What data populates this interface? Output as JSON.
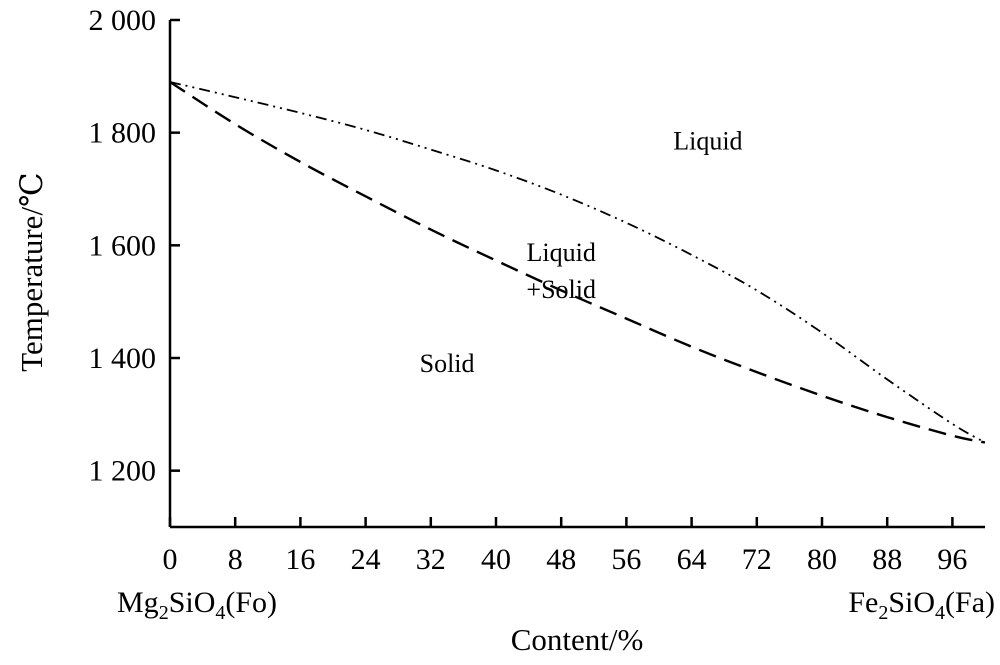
{
  "chart_data": {
    "type": "line",
    "xlabel": "Content/%",
    "ylabel": "Temperature/℃",
    "x_ticks": [
      0,
      8,
      16,
      24,
      32,
      40,
      48,
      56,
      64,
      72,
      80,
      88,
      96
    ],
    "y_ticks": [
      1200,
      1400,
      1600,
      1800,
      2000
    ],
    "y_tick_labels": [
      "1 200",
      "1 400",
      "1 600",
      "1 800",
      "2 000"
    ],
    "xlim": [
      0,
      100
    ],
    "ylim": [
      1100,
      2000
    ],
    "grid": false,
    "end_labels": {
      "left": {
        "main": "Mg",
        "s1": "2",
        "mid": "SiO",
        "s2": "4",
        "tail": "(Fo)"
      },
      "right": {
        "main": "Fe",
        "s1": "2",
        "mid": "SiO",
        "s2": "4",
        "tail": "(Fa)"
      }
    },
    "series": [
      {
        "id": "liquidus",
        "style": "dash-dot-dot",
        "x": [
          0,
          8,
          16,
          24,
          32,
          40,
          48,
          56,
          64,
          72,
          80,
          88,
          96,
          100
        ],
        "y": [
          1890,
          1863,
          1835,
          1805,
          1770,
          1733,
          1690,
          1640,
          1583,
          1520,
          1445,
          1362,
          1283,
          1250
        ]
      },
      {
        "id": "solidus",
        "style": "dashed",
        "x": [
          0,
          8,
          16,
          24,
          32,
          40,
          48,
          56,
          64,
          72,
          80,
          88,
          96,
          100
        ],
        "y": [
          1890,
          1815,
          1748,
          1687,
          1628,
          1573,
          1520,
          1470,
          1420,
          1375,
          1333,
          1295,
          1262,
          1250
        ]
      }
    ],
    "regions": [
      {
        "lines": [
          "Liquid"
        ],
        "x": 66,
        "y": 1770
      },
      {
        "lines": [
          "Liquid",
          "+Solid"
        ],
        "x": 48,
        "y": 1572
      },
      {
        "lines": [
          "Solid"
        ],
        "x": 34,
        "y": 1375
      }
    ]
  }
}
